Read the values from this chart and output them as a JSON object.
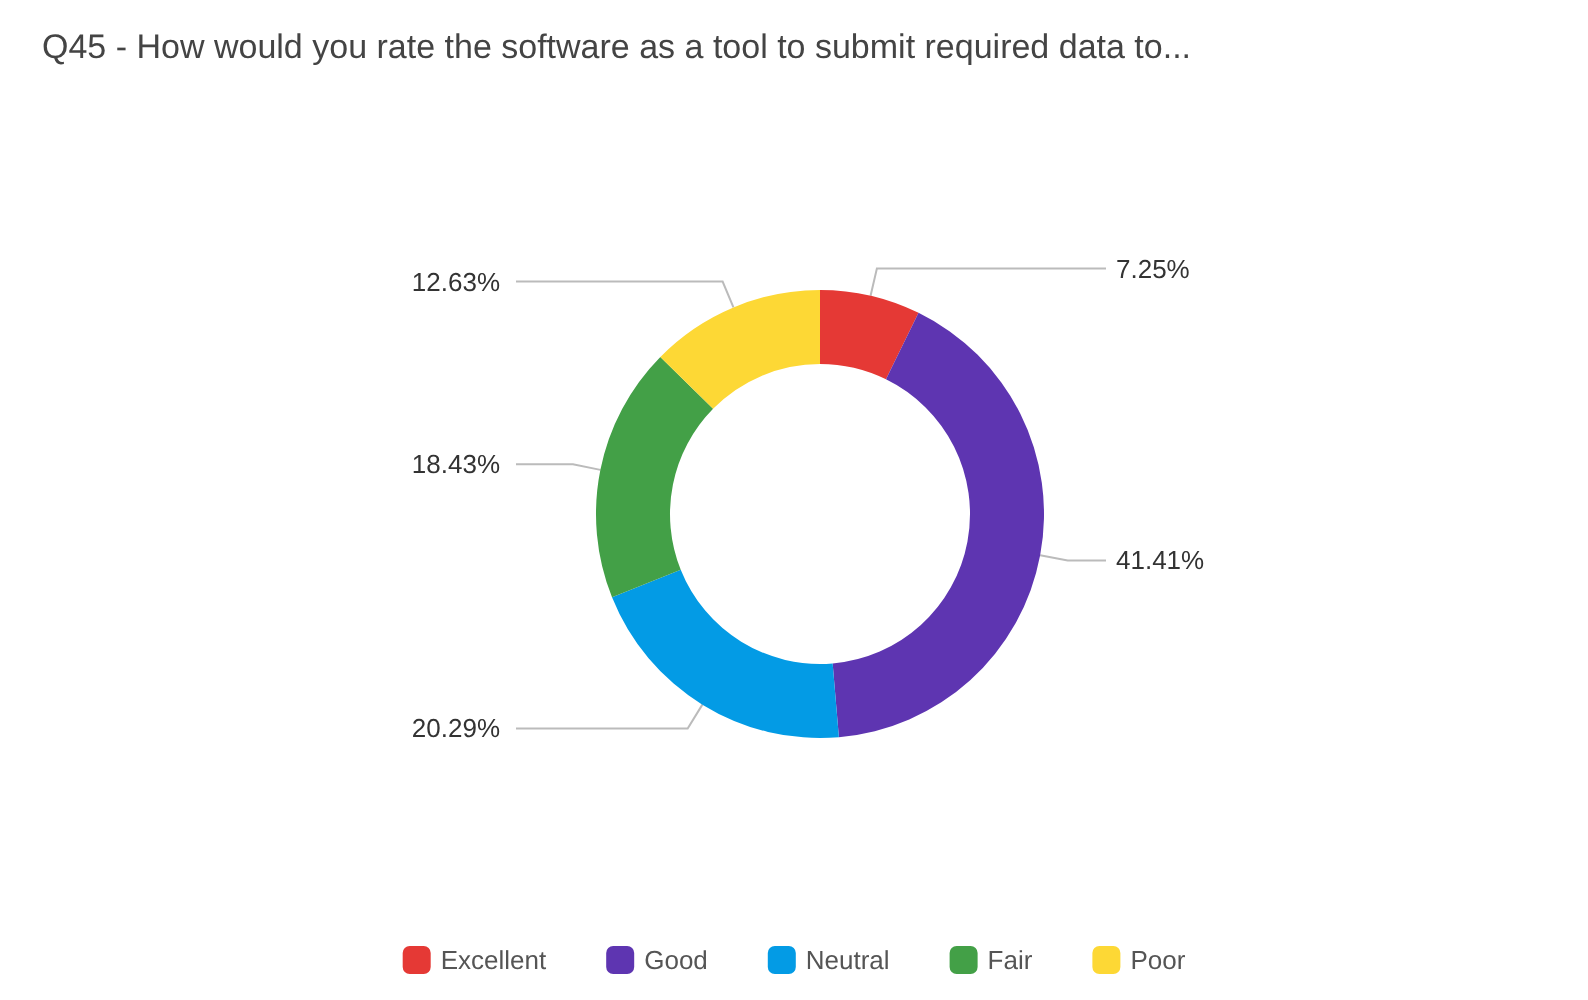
{
  "chart_data": {
    "type": "donut",
    "title": "Q45 - How would you rate the software as a tool to submit required data to...",
    "categories": [
      "Excellent",
      "Good",
      "Neutral",
      "Fair",
      "Poor"
    ],
    "values": [
      7.25,
      41.41,
      20.29,
      18.43,
      12.63
    ],
    "colors": [
      "#e53935",
      "#5e35b1",
      "#039be5",
      "#43a047",
      "#fdd835"
    ],
    "value_labels": [
      "7.25%",
      "41.41%",
      "20.29%",
      "18.43%",
      "12.63%"
    ],
    "legend": "bottom"
  }
}
